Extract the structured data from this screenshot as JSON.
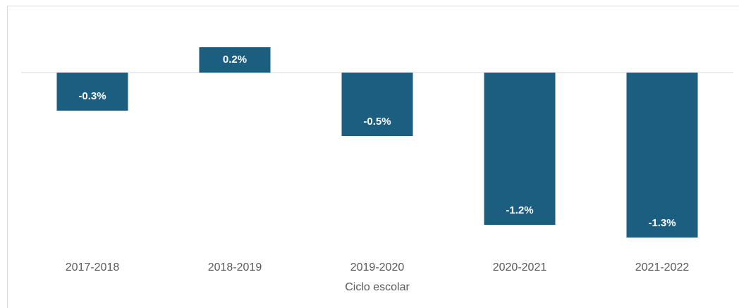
{
  "chart_data": {
    "type": "bar",
    "x_label": "Ciclo escolar",
    "categories": [
      "2017-2018",
      "2018-2019",
      "2019-2020",
      "2020-2021",
      "2021-2022"
    ],
    "values": [
      -0.3,
      0.2,
      -0.5,
      -1.2,
      -1.3
    ],
    "value_labels": [
      "-0.3%",
      "0.2%",
      "-0.5%",
      "-1.2%",
      "-1.3%"
    ],
    "color": "#1b5e80",
    "ylim": [
      -1.4,
      0.4
    ]
  }
}
